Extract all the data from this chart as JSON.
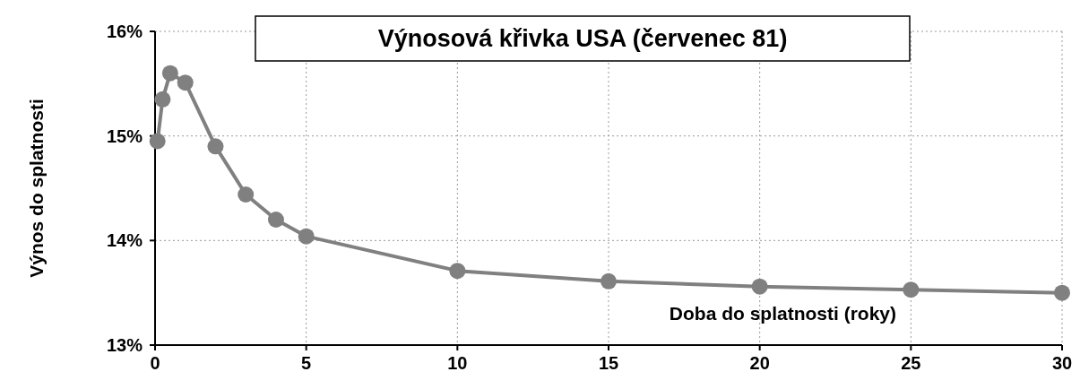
{
  "chart_data": {
    "type": "line",
    "title": "Výnosová křivka USA (červenec 81)",
    "xlabel": "Doba do splatnosti (roky)",
    "ylabel": "Výnos do splatnosti",
    "x": [
      0.08,
      0.25,
      0.5,
      1,
      2,
      3,
      4,
      5,
      10,
      15,
      20,
      25,
      30
    ],
    "series": [
      {
        "color": "#808080",
        "values": [
          14.95,
          15.35,
          15.6,
          15.51,
          14.9,
          14.44,
          14.2,
          14.04,
          13.71,
          13.61,
          13.56,
          13.53,
          13.5
        ]
      }
    ],
    "xlim": [
      0,
      30
    ],
    "xticks": [
      0,
      5,
      10,
      15,
      20,
      25,
      30
    ],
    "ylim": [
      13,
      16
    ],
    "yticks": [
      {
        "value": 13,
        "label": "13%"
      },
      {
        "value": 14,
        "label": "14%"
      },
      {
        "value": 15,
        "label": "15%"
      },
      {
        "value": 16,
        "label": "16%"
      }
    ],
    "grid": true,
    "marker": "circle",
    "line_style": "solid"
  }
}
